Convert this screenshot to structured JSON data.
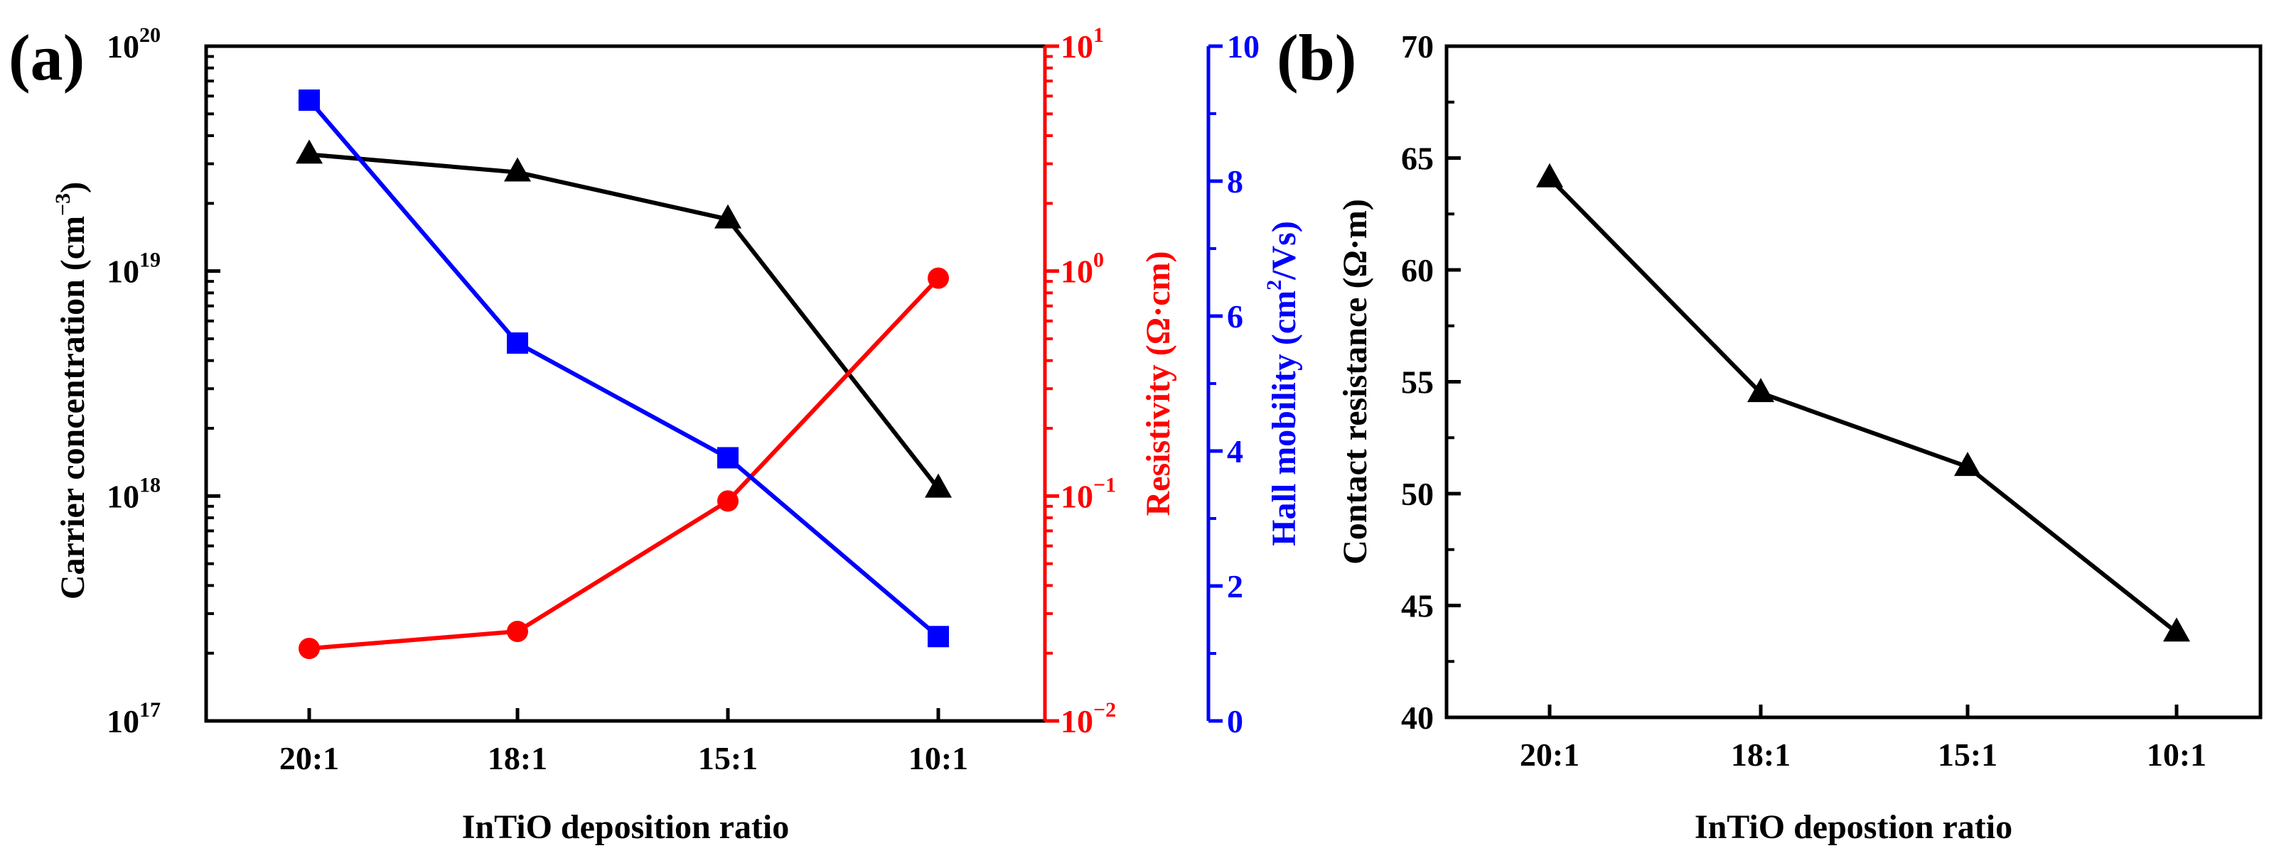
{
  "chart_data": [
    {
      "panel": "(a)",
      "type": "line",
      "categories": [
        "20:1",
        "18:1",
        "15:1",
        "10:1"
      ],
      "xlabel": "InTiO deposition ratio",
      "series": [
        {
          "name": "Carrier concentration",
          "axis": "left",
          "scale": "log",
          "color": "#000000",
          "marker": "triangle",
          "values": [
            3.3e+19,
            2.75e+19,
            1.7e+19,
            1.08e+18
          ]
        },
        {
          "name": "Resistivity",
          "axis": "right1",
          "scale": "log",
          "color": "#ff0000",
          "marker": "circle",
          "values": [
            0.021,
            0.025,
            0.095,
            0.93
          ]
        },
        {
          "name": "Hall mobility",
          "axis": "right2",
          "scale": "linear",
          "color": "#0000ff",
          "marker": "square",
          "values": [
            9.2,
            5.6,
            3.9,
            1.25
          ]
        }
      ],
      "axes": {
        "left": {
          "label": "Carrier concentration (cm",
          "label_sup": "−3",
          "label_end": ")",
          "scale": "log",
          "ylim": [
            1e+17,
            1e+20
          ],
          "ticks": [
            {
              "base": "10",
              "exp": "17",
              "value": 1e+17
            },
            {
              "base": "10",
              "exp": "18",
              "value": 1e+18
            },
            {
              "base": "10",
              "exp": "19",
              "value": 1e+19
            },
            {
              "base": "10",
              "exp": "20",
              "value": 1e+20
            }
          ],
          "color": "#000000"
        },
        "right1": {
          "label": "Resistivity (Ω·cm)",
          "scale": "log",
          "ylim": [
            0.01,
            10
          ],
          "ticks": [
            {
              "base": "10",
              "exp": "−2",
              "value": 0.01
            },
            {
              "base": "10",
              "exp": "−1",
              "value": 0.1
            },
            {
              "base": "10",
              "exp": "0",
              "value": 1
            },
            {
              "base": "10",
              "exp": "1",
              "value": 10
            }
          ],
          "color": "#ff0000"
        },
        "right2": {
          "label": "Hall mobility (cm",
          "label_sup": "2",
          "label_end": "/Vs)",
          "scale": "linear",
          "ylim": [
            0,
            10
          ],
          "ticks": [
            "0",
            "2",
            "4",
            "6",
            "8",
            "10"
          ],
          "color": "#0000ff"
        }
      }
    },
    {
      "panel": "(b)",
      "type": "line",
      "categories": [
        "20:1",
        "18:1",
        "15:1",
        "10:1"
      ],
      "xlabel": "InTiO depostion ratio",
      "ylabel": "Contact resistance (Ω·m)",
      "ylim": [
        40,
        70
      ],
      "yticks": [
        "40",
        "45",
        "50",
        "55",
        "60",
        "65",
        "70"
      ],
      "series": [
        {
          "name": "Contact resistance",
          "color": "#000000",
          "marker": "triangle",
          "values": [
            64.1,
            54.5,
            51.2,
            43.8
          ]
        }
      ]
    }
  ]
}
